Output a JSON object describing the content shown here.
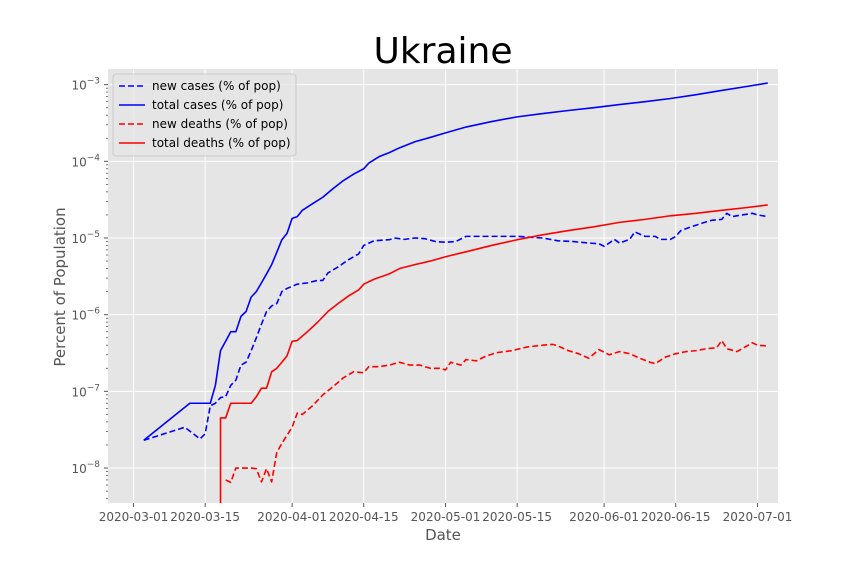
{
  "chart_data": {
    "type": "line",
    "title": "Ukraine",
    "xlabel": "Date",
    "ylabel": "Percent of Population",
    "yscale": "log",
    "ylim": [
      3.5e-09,
      0.0016
    ],
    "xlim": [
      "2020-02-25",
      "2020-07-05"
    ],
    "grid": true,
    "legend_position": "upper-left",
    "background": "#e5e5e5",
    "x_ticks": [
      {
        "date": "2020-03-01",
        "label": "2020-03-01"
      },
      {
        "date": "2020-03-15",
        "label": "2020-03-15"
      },
      {
        "date": "2020-04-01",
        "label": "2020-04-01"
      },
      {
        "date": "2020-04-15",
        "label": "2020-04-15"
      },
      {
        "date": "2020-05-01",
        "label": "2020-05-01"
      },
      {
        "date": "2020-05-15",
        "label": "2020-05-15"
      },
      {
        "date": "2020-06-01",
        "label": "2020-06-01"
      },
      {
        "date": "2020-06-15",
        "label": "2020-06-15"
      },
      {
        "date": "2020-07-01",
        "label": "2020-07-01"
      }
    ],
    "y_ticks": [
      {
        "value": 1e-08,
        "base": "10",
        "exp": "−8"
      },
      {
        "value": 1e-07,
        "base": "10",
        "exp": "−7"
      },
      {
        "value": 1e-06,
        "base": "10",
        "exp": "−6"
      },
      {
        "value": 1e-05,
        "base": "10",
        "exp": "−5"
      },
      {
        "value": 0.0001,
        "base": "10",
        "exp": "−4"
      },
      {
        "value": 0.001,
        "base": "10",
        "exp": "−3"
      }
    ],
    "series": [
      {
        "name": "new cases (% of pop)",
        "color": "#0000ff",
        "dashed": true,
        "points": [
          [
            "2020-03-03",
            2.3e-08
          ],
          [
            "2020-03-07",
            2.8e-08
          ],
          [
            "2020-03-11",
            3.4e-08
          ],
          [
            "2020-03-14",
            2.4e-08
          ],
          [
            "2020-03-15",
            2.8e-08
          ],
          [
            "2020-03-16",
            6.5e-08
          ],
          [
            "2020-03-17",
            7e-08
          ],
          [
            "2020-03-18",
            8.3e-08
          ],
          [
            "2020-03-19",
            8.5e-08
          ],
          [
            "2020-03-20",
            1.2e-07
          ],
          [
            "2020-03-21",
            1.4e-07
          ],
          [
            "2020-03-22",
            2.2e-07
          ],
          [
            "2020-03-23",
            2.4e-07
          ],
          [
            "2020-03-24",
            3.4e-07
          ],
          [
            "2020-03-25",
            5e-07
          ],
          [
            "2020-03-26",
            7.5e-07
          ],
          [
            "2020-03-27",
            1.1e-06
          ],
          [
            "2020-03-28",
            1.3e-06
          ],
          [
            "2020-03-29",
            1.4e-06
          ],
          [
            "2020-03-30",
            2e-06
          ],
          [
            "2020-03-31",
            2.2e-06
          ],
          [
            "2020-04-02",
            2.5e-06
          ],
          [
            "2020-04-04",
            2.6e-06
          ],
          [
            "2020-04-06",
            2.8e-06
          ],
          [
            "2020-04-07",
            2.8e-06
          ],
          [
            "2020-04-08",
            3.5e-06
          ],
          [
            "2020-04-10",
            4.2e-06
          ],
          [
            "2020-04-12",
            5.2e-06
          ],
          [
            "2020-04-14",
            6.2e-06
          ],
          [
            "2020-04-15",
            8e-06
          ],
          [
            "2020-04-17",
            9.2e-06
          ],
          [
            "2020-04-20",
            9.5e-06
          ],
          [
            "2020-04-21",
            1e-05
          ],
          [
            "2020-04-23",
            9.6e-06
          ],
          [
            "2020-04-25",
            1e-05
          ],
          [
            "2020-04-27",
            9.8e-06
          ],
          [
            "2020-04-29",
            9e-06
          ],
          [
            "2020-05-01",
            8.8e-06
          ],
          [
            "2020-05-03",
            9e-06
          ],
          [
            "2020-05-05",
            1.05e-05
          ],
          [
            "2020-05-10",
            1.05e-05
          ],
          [
            "2020-05-15",
            1.05e-05
          ],
          [
            "2020-05-20",
            1e-05
          ],
          [
            "2020-05-23",
            9.2e-06
          ],
          [
            "2020-05-26",
            9e-06
          ],
          [
            "2020-05-29",
            8.6e-06
          ],
          [
            "2020-05-31",
            8.4e-06
          ],
          [
            "2020-06-01",
            7.8e-06
          ],
          [
            "2020-06-02",
            8.6e-06
          ],
          [
            "2020-06-03",
            9.6e-06
          ],
          [
            "2020-06-04",
            8.6e-06
          ],
          [
            "2020-06-06",
            9.6e-06
          ],
          [
            "2020-06-07",
            1.2e-05
          ],
          [
            "2020-06-09",
            1.05e-05
          ],
          [
            "2020-06-11",
            1.05e-05
          ],
          [
            "2020-06-12",
            9.6e-06
          ],
          [
            "2020-06-14",
            9.6e-06
          ],
          [
            "2020-06-15",
            1.05e-05
          ],
          [
            "2020-06-16",
            1.25e-05
          ],
          [
            "2020-06-18",
            1.4e-05
          ],
          [
            "2020-06-20",
            1.55e-05
          ],
          [
            "2020-06-22",
            1.7e-05
          ],
          [
            "2020-06-24",
            1.75e-05
          ],
          [
            "2020-06-25",
            2.1e-05
          ],
          [
            "2020-06-26",
            1.9e-05
          ],
          [
            "2020-06-28",
            2e-05
          ],
          [
            "2020-06-30",
            2.1e-05
          ],
          [
            "2020-07-01",
            2e-05
          ],
          [
            "2020-07-02",
            1.95e-05
          ],
          [
            "2020-07-03",
            1.9e-05
          ]
        ]
      },
      {
        "name": "total cases (% of pop)",
        "color": "#0000ff",
        "dashed": false,
        "points": [
          [
            "2020-03-03",
            2.3e-08
          ],
          [
            "2020-03-12",
            7e-08
          ],
          [
            "2020-03-16",
            7e-08
          ],
          [
            "2020-03-17",
            1.2e-07
          ],
          [
            "2020-03-18",
            3.4e-07
          ],
          [
            "2020-03-19",
            4.5e-07
          ],
          [
            "2020-03-20",
            6e-07
          ],
          [
            "2020-03-21",
            6e-07
          ],
          [
            "2020-03-22",
            9.5e-07
          ],
          [
            "2020-03-23",
            1.1e-06
          ],
          [
            "2020-03-24",
            1.7e-06
          ],
          [
            "2020-03-25",
            2e-06
          ],
          [
            "2020-03-26",
            2.6e-06
          ],
          [
            "2020-03-27",
            3.4e-06
          ],
          [
            "2020-03-28",
            4.5e-06
          ],
          [
            "2020-03-29",
            6.5e-06
          ],
          [
            "2020-03-30",
            9.5e-06
          ],
          [
            "2020-03-31",
            1.15e-05
          ],
          [
            "2020-04-01",
            1.8e-05
          ],
          [
            "2020-04-02",
            1.9e-05
          ],
          [
            "2020-04-03",
            2.3e-05
          ],
          [
            "2020-04-05",
            2.8e-05
          ],
          [
            "2020-04-07",
            3.4e-05
          ],
          [
            "2020-04-09",
            4.4e-05
          ],
          [
            "2020-04-11",
            5.6e-05
          ],
          [
            "2020-04-13",
            6.8e-05
          ],
          [
            "2020-04-15",
            8e-05
          ],
          [
            "2020-04-16",
            9.5e-05
          ],
          [
            "2020-04-18",
            0.000115
          ],
          [
            "2020-04-20",
            0.00013
          ],
          [
            "2020-04-22",
            0.00015
          ],
          [
            "2020-04-25",
            0.00018
          ],
          [
            "2020-04-28",
            0.000205
          ],
          [
            "2020-05-01",
            0.000235
          ],
          [
            "2020-05-05",
            0.00028
          ],
          [
            "2020-05-10",
            0.00033
          ],
          [
            "2020-05-15",
            0.00038
          ],
          [
            "2020-05-20",
            0.00042
          ],
          [
            "2020-05-25",
            0.00046
          ],
          [
            "2020-05-30",
            0.0005
          ],
          [
            "2020-06-04",
            0.00055
          ],
          [
            "2020-06-09",
            0.0006
          ],
          [
            "2020-06-14",
            0.00066
          ],
          [
            "2020-06-19",
            0.00074
          ],
          [
            "2020-06-24",
            0.00084
          ],
          [
            "2020-06-29",
            0.00095
          ],
          [
            "2020-07-03",
            0.00105
          ]
        ]
      },
      {
        "name": "new deaths (% of pop)",
        "color": "#ff0000",
        "dashed": true,
        "points": [
          [
            "2020-03-19",
            7e-09
          ],
          [
            "2020-03-20",
            6.5e-09
          ],
          [
            "2020-03-21",
            1e-08
          ],
          [
            "2020-03-24",
            1e-08
          ],
          [
            "2020-03-25",
            9.8e-09
          ],
          [
            "2020-03-26",
            6.6e-09
          ],
          [
            "2020-03-27",
            9.8e-09
          ],
          [
            "2020-03-28",
            6.6e-09
          ],
          [
            "2020-03-29",
            1.6e-08
          ],
          [
            "2020-03-30",
            2.1e-08
          ],
          [
            "2020-04-01",
            3.4e-08
          ],
          [
            "2020-04-02",
            5.2e-08
          ],
          [
            "2020-04-03",
            5e-08
          ],
          [
            "2020-04-05",
            6.5e-08
          ],
          [
            "2020-04-07",
            9e-08
          ],
          [
            "2020-04-09",
            1.15e-07
          ],
          [
            "2020-04-11",
            1.5e-07
          ],
          [
            "2020-04-13",
            1.8e-07
          ],
          [
            "2020-04-15",
            1.75e-07
          ],
          [
            "2020-04-16",
            2.1e-07
          ],
          [
            "2020-04-18",
            2.1e-07
          ],
          [
            "2020-04-20",
            2.2e-07
          ],
          [
            "2020-04-22",
            2.4e-07
          ],
          [
            "2020-04-24",
            2.2e-07
          ],
          [
            "2020-04-26",
            2.2e-07
          ],
          [
            "2020-04-28",
            2e-07
          ],
          [
            "2020-04-30",
            2e-07
          ],
          [
            "2020-05-01",
            1.9e-07
          ],
          [
            "2020-05-02",
            2.4e-07
          ],
          [
            "2020-05-04",
            2.2e-07
          ],
          [
            "2020-05-05",
            2.6e-07
          ],
          [
            "2020-05-07",
            2.5e-07
          ],
          [
            "2020-05-09",
            2.9e-07
          ],
          [
            "2020-05-11",
            3.2e-07
          ],
          [
            "2020-05-14",
            3.4e-07
          ],
          [
            "2020-05-17",
            3.8e-07
          ],
          [
            "2020-05-20",
            4e-07
          ],
          [
            "2020-05-22",
            4.1e-07
          ],
          [
            "2020-05-23",
            3.9e-07
          ],
          [
            "2020-05-25",
            3.4e-07
          ],
          [
            "2020-05-27",
            3.1e-07
          ],
          [
            "2020-05-29",
            2.7e-07
          ],
          [
            "2020-05-31",
            3.5e-07
          ],
          [
            "2020-06-02",
            3e-07
          ],
          [
            "2020-06-04",
            3.3e-07
          ],
          [
            "2020-06-06",
            3.1e-07
          ],
          [
            "2020-06-08",
            2.7e-07
          ],
          [
            "2020-06-10",
            2.4e-07
          ],
          [
            "2020-06-11",
            2.3e-07
          ],
          [
            "2020-06-13",
            2.8e-07
          ],
          [
            "2020-06-15",
            3.1e-07
          ],
          [
            "2020-06-17",
            3.3e-07
          ],
          [
            "2020-06-19",
            3.4e-07
          ],
          [
            "2020-06-21",
            3.6e-07
          ],
          [
            "2020-06-23",
            3.7e-07
          ],
          [
            "2020-06-24",
            4.6e-07
          ],
          [
            "2020-06-25",
            3.6e-07
          ],
          [
            "2020-06-27",
            3.3e-07
          ],
          [
            "2020-06-30",
            4.3e-07
          ],
          [
            "2020-07-01",
            4e-07
          ],
          [
            "2020-07-03",
            3.9e-07
          ]
        ]
      },
      {
        "name": "total deaths (% of pop)",
        "color": "#ff0000",
        "dashed": false,
        "points": [
          [
            "2020-03-18",
            3.5e-09
          ],
          [
            "2020-03-18",
            4.5e-08
          ],
          [
            "2020-03-19",
            4.5e-08
          ],
          [
            "2020-03-20",
            7e-08
          ],
          [
            "2020-03-24",
            7e-08
          ],
          [
            "2020-03-25",
            8.5e-08
          ],
          [
            "2020-03-26",
            1.1e-07
          ],
          [
            "2020-03-27",
            1.1e-07
          ],
          [
            "2020-03-28",
            1.8e-07
          ],
          [
            "2020-03-29",
            2e-07
          ],
          [
            "2020-03-30",
            2.4e-07
          ],
          [
            "2020-03-31",
            2.9e-07
          ],
          [
            "2020-04-01",
            4.5e-07
          ],
          [
            "2020-04-02",
            4.6e-07
          ],
          [
            "2020-04-04",
            6e-07
          ],
          [
            "2020-04-06",
            8e-07
          ],
          [
            "2020-04-08",
            1.1e-06
          ],
          [
            "2020-04-10",
            1.4e-06
          ],
          [
            "2020-04-12",
            1.75e-06
          ],
          [
            "2020-04-14",
            2.1e-06
          ],
          [
            "2020-04-15",
            2.5e-06
          ],
          [
            "2020-04-17",
            2.9e-06
          ],
          [
            "2020-04-20",
            3.4e-06
          ],
          [
            "2020-04-22",
            4e-06
          ],
          [
            "2020-04-25",
            4.5e-06
          ],
          [
            "2020-04-28",
            5e-06
          ],
          [
            "2020-05-01",
            5.7e-06
          ],
          [
            "2020-05-05",
            6.6e-06
          ],
          [
            "2020-05-10",
            8e-06
          ],
          [
            "2020-05-15",
            9.5e-06
          ],
          [
            "2020-05-20",
            1.1e-05
          ],
          [
            "2020-05-25",
            1.25e-05
          ],
          [
            "2020-05-30",
            1.4e-05
          ],
          [
            "2020-06-04",
            1.6e-05
          ],
          [
            "2020-06-09",
            1.75e-05
          ],
          [
            "2020-06-14",
            1.95e-05
          ],
          [
            "2020-06-19",
            2.1e-05
          ],
          [
            "2020-06-24",
            2.3e-05
          ],
          [
            "2020-06-29",
            2.5e-05
          ],
          [
            "2020-07-03",
            2.7e-05
          ]
        ]
      }
    ]
  }
}
